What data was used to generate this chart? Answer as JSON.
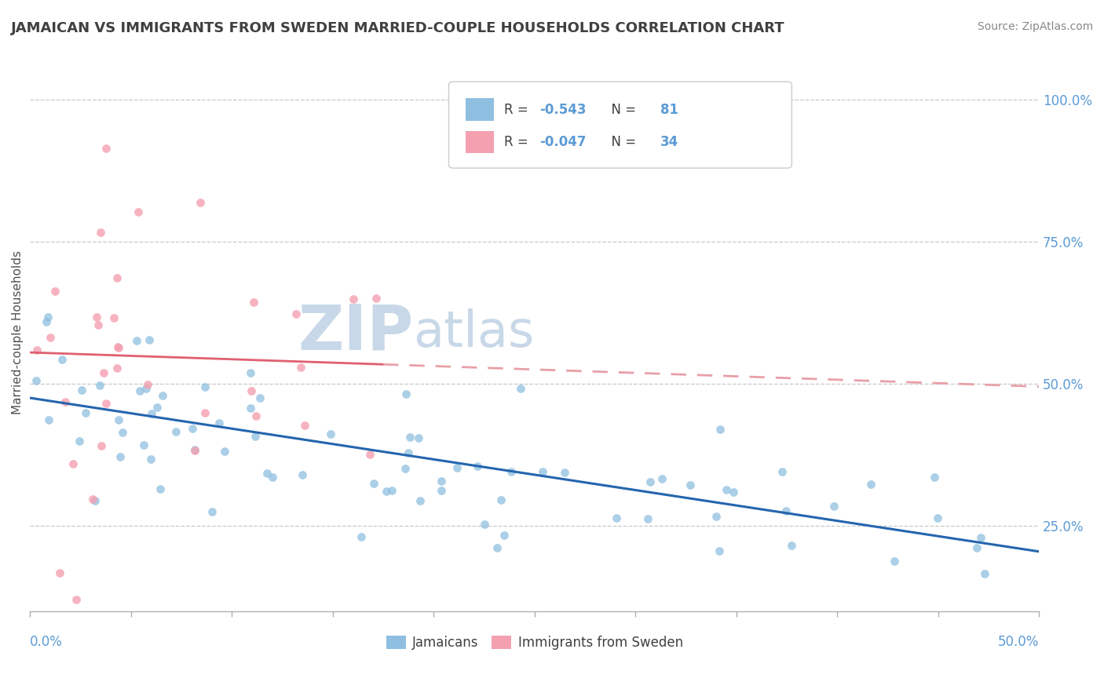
{
  "title": "JAMAICAN VS IMMIGRANTS FROM SWEDEN MARRIED-COUPLE HOUSEHOLDS CORRELATION CHART",
  "source": "Source: ZipAtlas.com",
  "ylabel": "Married-couple Households",
  "y_tick_labels": [
    "25.0%",
    "50.0%",
    "75.0%",
    "100.0%"
  ],
  "y_tick_values": [
    0.25,
    0.5,
    0.75,
    1.0
  ],
  "xlim": [
    0.0,
    0.5
  ],
  "ylim": [
    0.1,
    1.08
  ],
  "blue_R": -0.543,
  "blue_N": 81,
  "pink_R": -0.047,
  "pink_N": 34,
  "blue_scatter_color": "#8fbfe0",
  "pink_scatter_color": "#f4a0b0",
  "blue_line_color": "#2565ae",
  "pink_line_solid_color": "#e06070",
  "pink_line_dash_color": "#e8a0a8",
  "watermark_color": "#c8d8e8",
  "background_color": "#ffffff",
  "grid_color": "#c8c8c8",
  "title_color": "#404040",
  "tick_label_color": "#5b9bd5",
  "source_color": "#888888",
  "legend_R_color": "#e05060",
  "legend_N_color": "#404040",
  "blue_line_intercept": 0.475,
  "blue_line_slope": -0.54,
  "pink_line_intercept": 0.555,
  "pink_line_slope": -0.12
}
